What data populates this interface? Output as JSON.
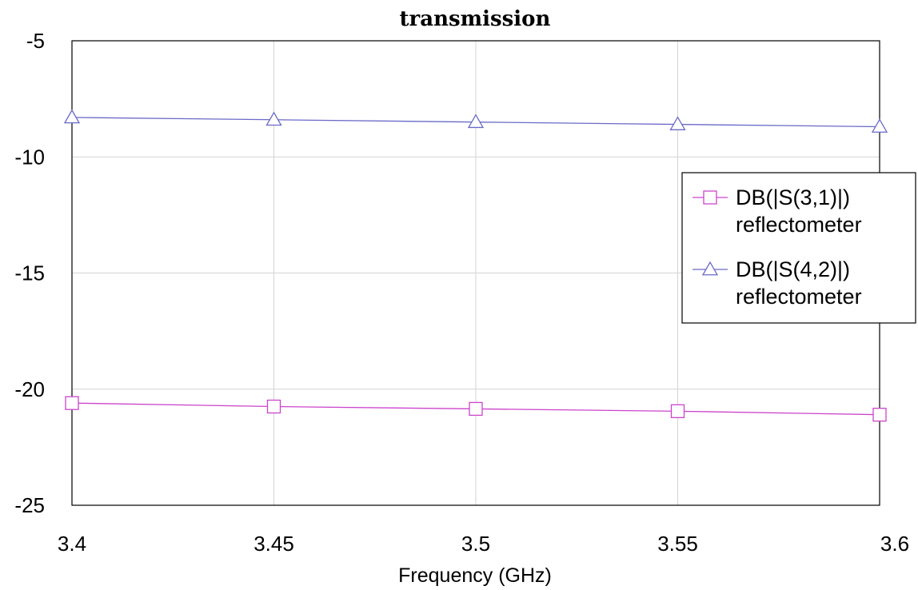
{
  "chart_data": {
    "type": "line",
    "title": "transmission",
    "xlabel": "Frequency (GHz)",
    "ylabel": "",
    "xlim": [
      3.4,
      3.6
    ],
    "ylim": [
      -25,
      -5
    ],
    "x_ticks": [
      "3.4",
      "3.45",
      "3.5",
      "3.55",
      "3.6"
    ],
    "y_ticks": [
      "-5",
      "-10",
      "-15",
      "-20",
      "-25"
    ],
    "grid": true,
    "legend_position": "right",
    "x": [
      3.4,
      3.45,
      3.5,
      3.55,
      3.6
    ],
    "series": [
      {
        "name": "DB(|S(3,1)|)",
        "name_line2": "reflectometer",
        "color": "#cc44cc",
        "marker": "square",
        "values": [
          -20.6,
          -20.75,
          -20.85,
          -20.95,
          -21.1
        ]
      },
      {
        "name": "DB(|S(4,2)|)",
        "name_line2": "reflectometer",
        "color": "#6a6ac8",
        "marker": "triangle",
        "values": [
          -8.3,
          -8.4,
          -8.5,
          -8.6,
          -8.7
        ]
      }
    ]
  }
}
